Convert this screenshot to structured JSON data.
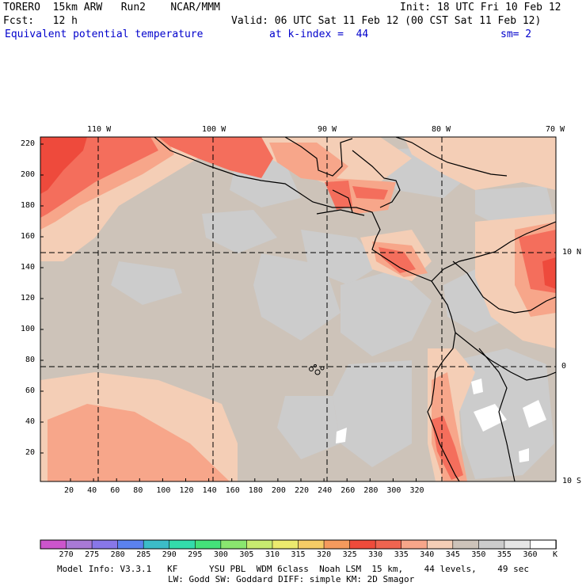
{
  "header": {
    "model": "TORERO  15km ARW   Run2    NCAR/MMM",
    "init": "Init: 18 UTC Fri 10 Feb 12",
    "fcst": "Fcst:   12 h",
    "valid": "Valid: 06 UTC Sat 11 Feb 12 (00 CST Sat 11 Feb 12)",
    "field": "Equivalent potential temperature",
    "level": "at k-index =  44",
    "smooth": "sm= 2"
  },
  "map": {
    "top_lon_labels": [
      "110 W",
      "100 W",
      "90 W",
      "80 W",
      "70 W"
    ],
    "right_lat_labels": [
      "10 N",
      "0",
      "10 S"
    ],
    "y_grid_labels": [
      "220",
      "200",
      "180",
      "160",
      "140",
      "120",
      "100",
      "80",
      "60",
      "40",
      "20"
    ],
    "x_grid_labels": [
      "20",
      "40",
      "60",
      "80",
      "100",
      "120",
      "140",
      "160",
      "180",
      "200",
      "220",
      "240",
      "260",
      "280",
      "300",
      "320"
    ],
    "colors": {
      "base": "#cdc3b9",
      "cool": "#cccccc",
      "light": "#f4ceb6",
      "mid": "#f7a68a",
      "warm": "#f46e5c",
      "hot": "#ee4a3c",
      "white": "#ffffff"
    }
  },
  "colorbar": {
    "labels": [
      "270",
      "275",
      "280",
      "285",
      "290",
      "295",
      "300",
      "305",
      "310",
      "315",
      "320",
      "325",
      "330",
      "335",
      "340",
      "345",
      "350",
      "355",
      "360"
    ],
    "unit": "K",
    "colors": [
      "#cc55cc",
      "#a97ad6",
      "#8877e8",
      "#5b82ef",
      "#3cbcc8",
      "#33dcab",
      "#44e27a",
      "#8ae66f",
      "#c7ea70",
      "#ecea6e",
      "#f5cc66",
      "#f49a5d",
      "#ef4b3b",
      "#ef6450",
      "#f7a68a",
      "#f4ceb6",
      "#cdc3b9",
      "#cccccc",
      "#e6e6e6",
      "#ffffff"
    ]
  },
  "footer": {
    "line1": "Model Info: V3.3.1   KF      YSU PBL  WDM 6class  Noah LSM  15 km,    44 levels,    49 sec",
    "line2": "LW: Godd SW: Goddard DIFF: simple KM: 2D Smagor"
  }
}
